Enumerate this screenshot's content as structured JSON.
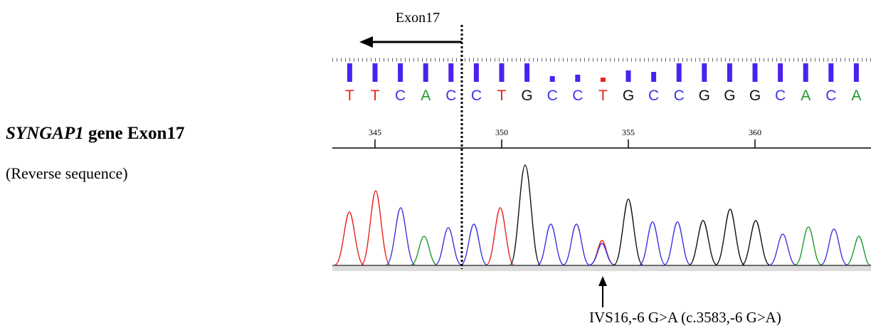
{
  "figure": {
    "gene_name": "SYNGAP1",
    "gene_suffix": "gene Exon17",
    "direction_note": "(Reverse sequence)",
    "exon_label": "Exon17",
    "mutation_label": "IVS16,-6 G>A (c.3583,-6 G>A)",
    "sequence": {
      "bases": [
        "T",
        "T",
        "C",
        "A",
        "C",
        "C",
        "T",
        "G",
        "C",
        "C",
        "T",
        "G",
        "C",
        "C",
        "G",
        "G",
        "G",
        "C",
        "A",
        "C",
        "A"
      ],
      "base_colors": {
        "T": "#e8221c",
        "C": "#3d35e0",
        "A": "#1f9a2a",
        "G": "#111111"
      },
      "quality": [
        26,
        26,
        26,
        26,
        26,
        26,
        26,
        26,
        8,
        10,
        6,
        16,
        14,
        26,
        26,
        26,
        26,
        26,
        26,
        26,
        26
      ],
      "quality_colors": [
        "#4a22f0",
        "#4a22f0",
        "#4a22f0",
        "#4a22f0",
        "#4a22f0",
        "#4a22f0",
        "#4a22f0",
        "#4a22f0",
        "#4a22f0",
        "#4a22f0",
        "#e8221c",
        "#4a22f0",
        "#4a22f0",
        "#4a22f0",
        "#4a22f0",
        "#4a22f0",
        "#4a22f0",
        "#4a22f0",
        "#4a22f0",
        "#4a22f0",
        "#4a22f0"
      ],
      "first_position": 344
    },
    "ruler": {
      "positions": [
        345,
        350,
        355,
        360
      ]
    }
  }
}
